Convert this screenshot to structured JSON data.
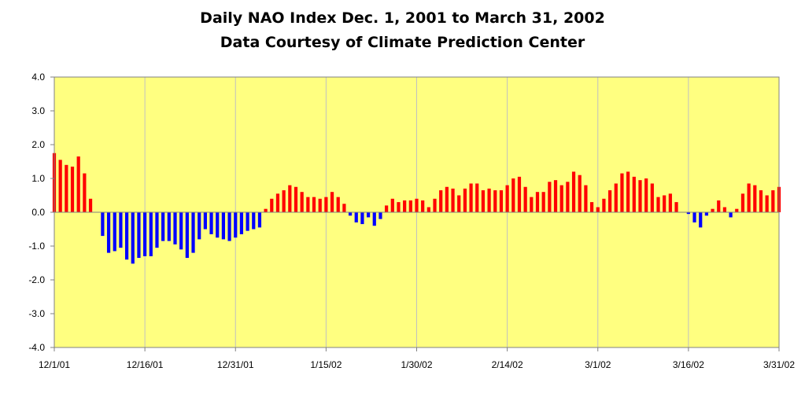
{
  "chart_data": {
    "type": "bar",
    "title": "Daily NAO Index Dec. 1, 2001 to March 31, 2002",
    "subtitle": "Data Courtesy of Climate Prediction Center",
    "xlabel": "",
    "ylabel": "",
    "ylim": [
      -4.0,
      4.0
    ],
    "y_ticks": [
      "4.0",
      "3.0",
      "2.0",
      "1.0",
      "0.0",
      "-1.0",
      "-2.0",
      "-3.0",
      "-4.0"
    ],
    "x_tick_labels": [
      "12/1/01",
      "12/16/01",
      "12/31/01",
      "1/15/02",
      "1/30/02",
      "2/14/02",
      "3/1/02",
      "3/16/02",
      "3/31/02"
    ],
    "x_tick_day_index": [
      0,
      15,
      30,
      45,
      60,
      75,
      90,
      105,
      120
    ],
    "grid": "vertical",
    "colors": {
      "positive": "#ff0000",
      "negative": "#0000ff",
      "plot_bg": "#ffff80"
    },
    "values": [
      1.75,
      1.55,
      1.4,
      1.35,
      1.65,
      1.15,
      0.4,
      0.0,
      -0.7,
      -1.2,
      -1.15,
      -1.05,
      -1.4,
      -1.52,
      -1.35,
      -1.3,
      -1.3,
      -1.05,
      -0.85,
      -0.85,
      -0.95,
      -1.1,
      -1.35,
      -1.2,
      -0.8,
      -0.5,
      -0.65,
      -0.75,
      -0.8,
      -0.85,
      -0.75,
      -0.65,
      -0.55,
      -0.5,
      -0.45,
      0.1,
      0.4,
      0.55,
      0.65,
      0.8,
      0.75,
      0.6,
      0.45,
      0.45,
      0.4,
      0.45,
      0.6,
      0.45,
      0.25,
      -0.1,
      -0.3,
      -0.35,
      -0.15,
      -0.4,
      -0.2,
      0.2,
      0.4,
      0.3,
      0.35,
      0.35,
      0.4,
      0.35,
      0.15,
      0.4,
      0.65,
      0.75,
      0.7,
      0.5,
      0.7,
      0.85,
      0.85,
      0.65,
      0.7,
      0.65,
      0.65,
      0.8,
      1.0,
      1.05,
      0.75,
      0.45,
      0.6,
      0.6,
      0.9,
      0.95,
      0.8,
      0.9,
      1.2,
      1.1,
      0.8,
      0.3,
      0.15,
      0.4,
      0.65,
      0.85,
      1.15,
      1.2,
      1.05,
      0.95,
      1.0,
      0.85,
      0.45,
      0.5,
      0.55,
      0.3,
      0.0,
      -0.05,
      -0.3,
      -0.45,
      -0.1,
      0.1,
      0.35,
      0.15,
      -0.15,
      0.1,
      0.55,
      0.85,
      0.8,
      0.65,
      0.5,
      0.65,
      0.75
    ]
  }
}
